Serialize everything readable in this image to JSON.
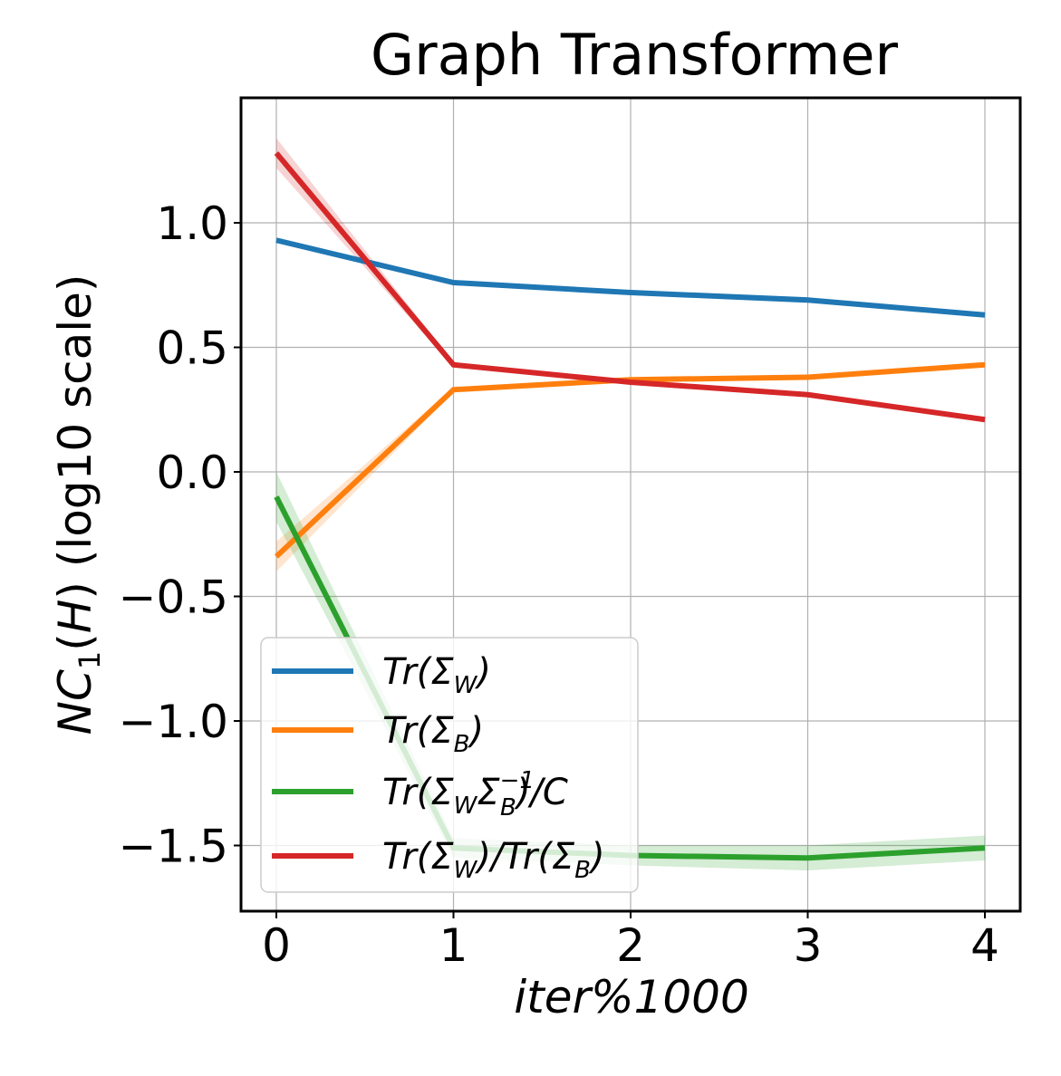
{
  "chart_data": {
    "type": "line",
    "title": "Graph Transformer",
    "xlabel": "iter%1000",
    "ylabel": "NC1(H) (log10 scale)",
    "x": [
      0,
      1,
      2,
      3,
      4
    ],
    "xticks": [
      "0",
      "1",
      "2",
      "3",
      "4"
    ],
    "yticks": [
      1.0,
      0.5,
      0.0,
      -0.5,
      -1.0,
      -1.5
    ],
    "ytick_labels": [
      "1.0",
      "0.5",
      "0.0",
      "−0.5",
      "−1.0",
      "−1.5"
    ],
    "xlim": [
      -0.2,
      4.2
    ],
    "ylim": [
      -1.77,
      1.5
    ],
    "grid": true,
    "legend_position": "lower left",
    "series": [
      {
        "name": "Tr(Σ_W)",
        "color": "#1f77b4",
        "values": [
          0.93,
          0.76,
          0.72,
          0.69,
          0.63
        ],
        "band": [
          0.01,
          0.01,
          0.01,
          0.01,
          0.01
        ]
      },
      {
        "name": "Tr(Σ_B)",
        "color": "#ff7f0e",
        "values": [
          -0.34,
          0.33,
          0.37,
          0.38,
          0.43
        ],
        "band": [
          0.06,
          0.01,
          0.01,
          0.01,
          0.01
        ]
      },
      {
        "name": "Tr(Σ_W Σ_B^-1)/C",
        "color": "#2ca02c",
        "values": [
          -0.1,
          -1.51,
          -1.54,
          -1.55,
          -1.51
        ],
        "band": [
          0.1,
          0.04,
          0.04,
          0.05,
          0.05
        ]
      },
      {
        "name": "Tr(Σ_W)/Tr(Σ_B)",
        "color": "#d62728",
        "values": [
          1.28,
          0.43,
          0.36,
          0.31,
          0.21
        ],
        "band": [
          0.06,
          0.01,
          0.01,
          0.01,
          0.01
        ]
      }
    ]
  },
  "legend": {
    "items": [
      {
        "main": "Tr(Σ",
        "sub": "W",
        "sup": "",
        "sub2": "",
        "tail": ")"
      },
      {
        "main": "Tr(Σ",
        "sub": "B",
        "sup": "",
        "sub2": "",
        "tail": ")"
      },
      {
        "main": "Tr(Σ",
        "sub": "W",
        "mid": "Σ",
        "sup": "−1",
        "sub2": "B",
        "tail": ")/C"
      },
      {
        "main": "Tr(Σ",
        "sub": "W",
        "mid2": ")/Tr(Σ",
        "sub3": "B",
        "tail": ")"
      }
    ]
  }
}
